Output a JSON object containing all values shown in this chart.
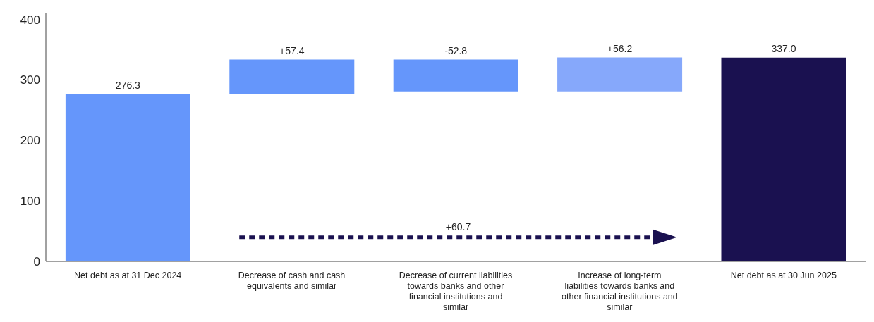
{
  "chart_data": {
    "type": "bar",
    "categories": [
      "Net debt as at 31 Dec 2024",
      "Decrease of cash and cash equivalents and similar",
      "Decrease of current liabilities towards banks and other financial institutions and similar",
      "Increase of long-term liabilities towards banks and other financial institutions and similar",
      "Net debt as at 30 Jun 2025"
    ],
    "values": [
      276.3,
      57.4,
      -52.8,
      56.2,
      337.0
    ],
    "base": [
      0,
      276.3,
      333.7,
      280.9,
      0
    ],
    "colors": [
      "#6596fb",
      "#6596fb",
      "#6596fb",
      "#86a8fb",
      "#1a1150"
    ],
    "value_labels": [
      "276.3",
      "+57.4",
      "-52.8",
      "+56.2",
      "337.0"
    ],
    "ylim": [
      0,
      410
    ],
    "yticks": [
      0,
      100,
      200,
      300,
      400
    ],
    "annotations": [
      "+60.7"
    ]
  }
}
